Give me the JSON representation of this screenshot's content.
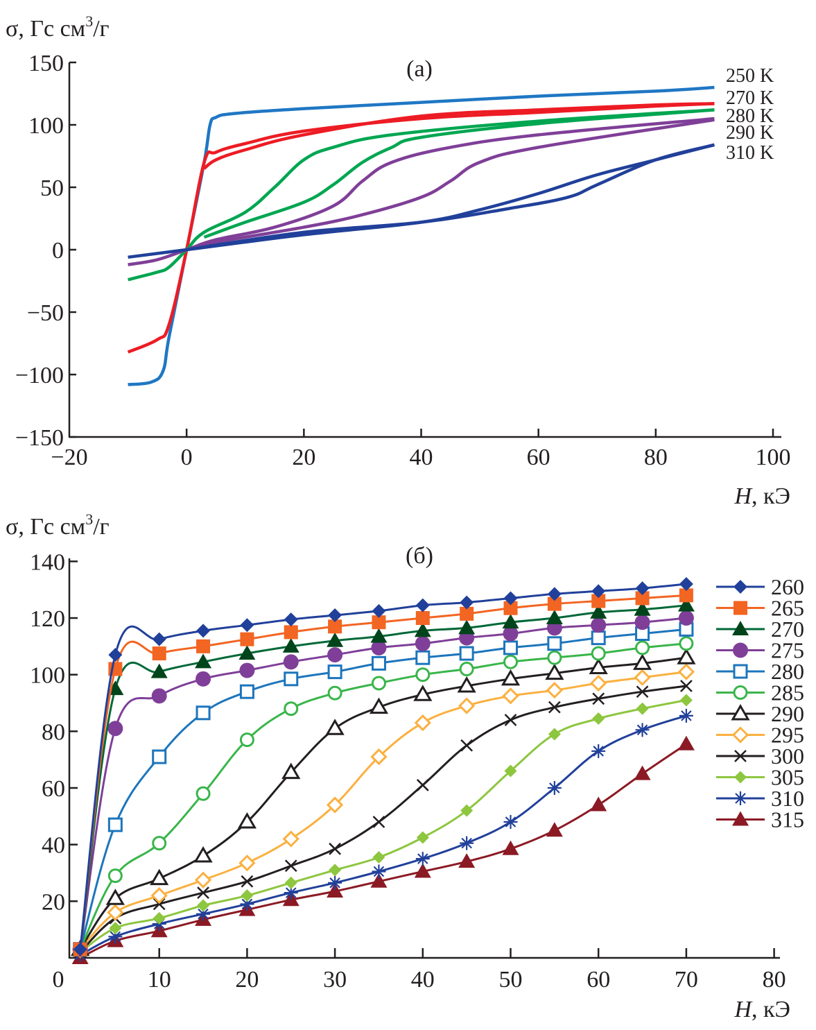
{
  "chart_data": [
    {
      "type": "line",
      "panel_label": "(а)",
      "ylabel": "σ, Гс см³/г",
      "ylabel_parts": {
        "main": "σ, Гс см",
        "sup": "3",
        "tail": "/г"
      },
      "xlabel_parts": {
        "var": "H",
        "unit": ", кЭ"
      },
      "xlim": [
        -20,
        100
      ],
      "ylim": [
        -150,
        150
      ],
      "xticks": [
        -20,
        0,
        20,
        40,
        60,
        80,
        100
      ],
      "yticks": [
        150,
        100,
        50,
        0,
        -50,
        -100,
        -150
      ],
      "xtick_labels": [
        "−20",
        "0",
        "20",
        "40",
        "60",
        "80",
        "100"
      ],
      "ytick_labels": [
        "150",
        "100",
        "50",
        "0",
        "−50",
        "−100",
        "−150"
      ],
      "legend_placement": "right, labels at line ends",
      "series": [
        {
          "name": "250 K",
          "color": "#1f77c4",
          "x": [
            -10,
            -6,
            -4,
            -3,
            0,
            3,
            4,
            5,
            8,
            20,
            40,
            60,
            80,
            90
          ],
          "y": [
            -108,
            -106,
            -97,
            -70,
            0,
            70,
            100,
            106,
            109,
            113,
            118,
            123,
            127,
            130
          ]
        },
        {
          "name": "270 K",
          "color": "#ed1c24",
          "x": [
            -10,
            -5,
            -3,
            0,
            3,
            5,
            10,
            20,
            40,
            60,
            80,
            90
          ],
          "y": [
            -82,
            -72,
            -60,
            0,
            70,
            78,
            85,
            95,
            105,
            110,
            115,
            117
          ]
        },
        {
          "name": "270 K (branch)",
          "color": "#ed1c24",
          "x": [
            3,
            5,
            10,
            20,
            40,
            60,
            80,
            90
          ],
          "y": [
            65,
            72,
            80,
            92,
            107,
            112,
            116,
            117
          ]
        },
        {
          "name": "280 K",
          "color": "#00a651",
          "x": [
            -10,
            -5,
            -3,
            0,
            3,
            10,
            15,
            20,
            25,
            35,
            60,
            90
          ],
          "y": [
            -24,
            -18,
            -14,
            0,
            14,
            30,
            50,
            72,
            82,
            92,
            103,
            112
          ]
        },
        {
          "name": "280 K (branch)",
          "color": "#00a651",
          "x": [
            3,
            10,
            20,
            25,
            30,
            35,
            40,
            60,
            90
          ],
          "y": [
            10,
            22,
            38,
            52,
            70,
            82,
            90,
            101,
            112
          ]
        },
        {
          "name": "290 K",
          "color": "#7f3f98",
          "x": [
            -10,
            -5,
            0,
            5,
            15,
            25,
            30,
            35,
            45,
            60,
            90
          ],
          "y": [
            -12,
            -8,
            0,
            8,
            18,
            35,
            55,
            70,
            82,
            92,
            105
          ]
        },
        {
          "name": "290 K (branch)",
          "color": "#7f3f98",
          "x": [
            0,
            5,
            20,
            30,
            40,
            45,
            50,
            60,
            90
          ],
          "y": [
            0,
            6,
            18,
            28,
            42,
            55,
            70,
            82,
            104
          ]
        },
        {
          "name": "310 K",
          "color": "#21409a",
          "x": [
            -10,
            0,
            20,
            40,
            50,
            60,
            70,
            80,
            90
          ],
          "y": [
            -6,
            0,
            12,
            22,
            32,
            45,
            60,
            72,
            84
          ]
        },
        {
          "name": "310 K (branch)",
          "color": "#21409a",
          "x": [
            0,
            20,
            40,
            55,
            65,
            70,
            80,
            90
          ],
          "y": [
            0,
            14,
            22,
            33,
            42,
            52,
            72,
            84
          ]
        }
      ],
      "end_labels": [
        "250 K",
        "270 K",
        "280 K",
        "290 K",
        "310 K"
      ]
    },
    {
      "type": "line",
      "panel_label": "(б)",
      "ylabel": "σ, Гс см³/г",
      "ylabel_parts": {
        "main": "σ, Гс см",
        "sup": "3",
        "tail": "/г"
      },
      "xlabel_parts": {
        "var": "H",
        "unit": ", кЭ"
      },
      "xlim": [
        0,
        80
      ],
      "ylim": [
        0,
        140
      ],
      "xticks": [
        0,
        10,
        20,
        30,
        40,
        50,
        60,
        70,
        80
      ],
      "yticks": [
        140,
        120,
        100,
        80,
        60,
        40,
        20
      ],
      "xtick_labels": [
        "0",
        "10",
        "20",
        "30",
        "40",
        "50",
        "60",
        "70",
        "80"
      ],
      "ytick_labels": [
        "140",
        "120",
        "100",
        "80",
        "60",
        "40",
        "20"
      ],
      "legend_placement": "right",
      "x": [
        1,
        5,
        10,
        15,
        20,
        25,
        30,
        35,
        40,
        45,
        50,
        55,
        60,
        65,
        70
      ],
      "series": [
        {
          "name": "260",
          "color": "#21409a",
          "marker": "diamond-filled",
          "values": [
            3,
            107,
            112.5,
            115.5,
            117.5,
            119.5,
            121,
            122.5,
            124.5,
            125.5,
            127,
            128.5,
            129.5,
            130.5,
            132
          ]
        },
        {
          "name": "265",
          "color": "#f26522",
          "marker": "square-filled",
          "values": [
            3,
            102,
            107.5,
            110,
            112.5,
            115,
            117,
            118.5,
            120,
            121.5,
            123.5,
            125,
            126,
            127,
            128
          ]
        },
        {
          "name": "270",
          "color": "#00441b",
          "line_color": "#006838",
          "marker": "triangle-filled",
          "values": [
            3,
            95,
            101,
            104.5,
            107.5,
            110,
            112,
            113.5,
            115.5,
            116.5,
            118.5,
            120,
            122,
            123,
            124.5
          ]
        },
        {
          "name": "275",
          "color": "#7f3f98",
          "marker": "circle-filled",
          "values": [
            3,
            81,
            92.5,
            98.5,
            101.5,
            104.5,
            107,
            109.5,
            111,
            113,
            114.5,
            116.5,
            117.5,
            118.5,
            120
          ]
        },
        {
          "name": "280",
          "color": "#1c75bc",
          "marker": "square-open",
          "values": [
            3,
            47,
            71,
            86.5,
            94,
            98.5,
            101,
            104,
            106,
            107.5,
            109.5,
            111,
            113,
            114.5,
            116
          ]
        },
        {
          "name": "285",
          "color": "#39b54a",
          "marker": "circle-open",
          "values": [
            3,
            29,
            40.5,
            58,
            77,
            88,
            93.5,
            97,
            100,
            102,
            104.5,
            106,
            107.5,
            109.5,
            111
          ]
        },
        {
          "name": "290",
          "color": "#231f20",
          "marker": "triangle-open",
          "values": [
            3,
            21,
            28,
            36,
            48,
            65.5,
            81,
            88.5,
            93,
            96,
            98.5,
            100.5,
            102.5,
            104,
            106
          ]
        },
        {
          "name": "295",
          "color": "#fbb040",
          "marker": "diamond-open",
          "values": [
            3,
            16,
            22,
            27.5,
            33.5,
            42,
            54,
            71,
            83,
            89,
            92.5,
            94.5,
            97,
            99,
            101
          ]
        },
        {
          "name": "300",
          "color": "#231f20",
          "marker": "x",
          "values": [
            2,
            14,
            19,
            23,
            27,
            32.5,
            38.5,
            48,
            61,
            75,
            84,
            88.5,
            91.5,
            94,
            96
          ]
        },
        {
          "name": "305",
          "color": "#8dc63f",
          "marker": "diamond-small-filled",
          "values": [
            2,
            10.5,
            14,
            18.5,
            22,
            26.5,
            31,
            35.5,
            42.5,
            52,
            66,
            79,
            84.5,
            88,
            91
          ]
        },
        {
          "name": "310",
          "color": "#21409a",
          "marker": "asterisk",
          "values": [
            1,
            7.5,
            12,
            15.5,
            19,
            23,
            26.5,
            30.5,
            35,
            40.5,
            48,
            60,
            73,
            80.5,
            85.5
          ]
        },
        {
          "name": "315",
          "color": "#8b1a24",
          "marker": "triangle-filled",
          "values": [
            0,
            6,
            9.5,
            13.5,
            17,
            20.5,
            23.5,
            27,
            30.5,
            34,
            38.5,
            45,
            54,
            65,
            75.5
          ]
        }
      ]
    }
  ]
}
